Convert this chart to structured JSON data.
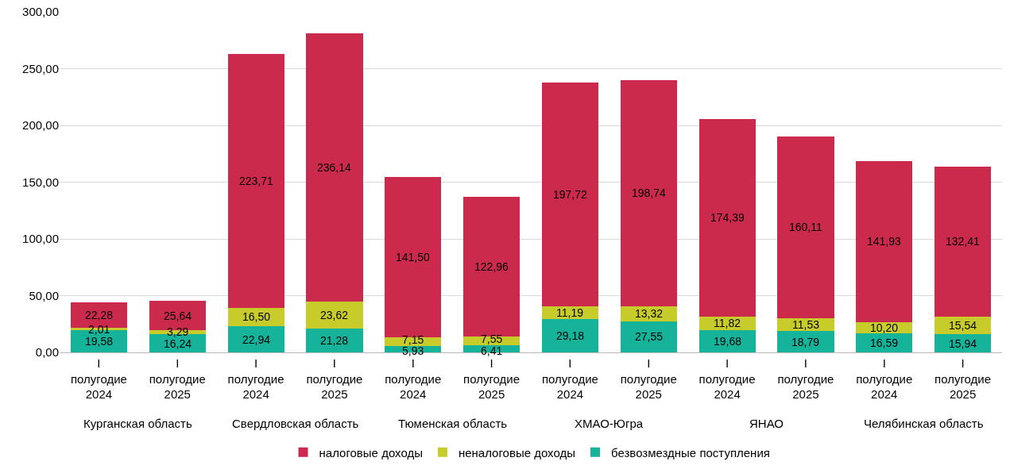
{
  "chart_data": {
    "type": "bar",
    "stacked": true,
    "grid": "y",
    "legend": "bottom",
    "categories": [
      "I полугодие 2024",
      "I полугодие 2025",
      "I полугодие 2024",
      "I полугодие 2025",
      "I полугодие 2024",
      "I полугодие 2025",
      "I полугодие 2024",
      "I полугодие 2025",
      "I полугодие 2024",
      "I полугодие 2025",
      "I полугодие 2024",
      "I полугодие 2025"
    ],
    "annotations": [
      "Курганская область",
      "Свердловская область",
      "Тюменская область",
      "ХМАО-Югра",
      "ЯНАО",
      "Челябинская область"
    ],
    "ylim": [
      0,
      300
    ],
    "yticks": [
      {
        "value": 0,
        "label": "0,00"
      },
      {
        "value": 50,
        "label": "50,00"
      },
      {
        "value": 100,
        "label": "100,00"
      },
      {
        "value": 150,
        "label": "150,00"
      },
      {
        "value": 200,
        "label": "200,00"
      },
      {
        "value": 250,
        "label": "250,00"
      },
      {
        "value": 300,
        "label": "300,00"
      }
    ],
    "series": [
      {
        "name": "безвозмездные поступления",
        "color": "#14b39a",
        "values": [
          19.58,
          16.24,
          22.94,
          21.28,
          5.93,
          6.41,
          29.18,
          27.55,
          19.68,
          18.79,
          16.59,
          15.94
        ],
        "value_labels": [
          "19,58",
          "16,24",
          "22,94",
          "21,28",
          "5,93",
          "6,41",
          "29,18",
          "27,55",
          "19,68",
          "18,79",
          "16,59",
          "15,94"
        ]
      },
      {
        "name": "неналоговые доходы",
        "color": "#c8cc2a",
        "values": [
          2.01,
          3.29,
          16.5,
          23.62,
          7.15,
          7.55,
          11.19,
          13.32,
          11.82,
          11.53,
          10.2,
          15.54
        ],
        "value_labels": [
          "2,01",
          "3,29",
          "16,50",
          "23,62",
          "7,15",
          "7,55",
          "11,19",
          "13,32",
          "11,82",
          "11,53",
          "10,20",
          "15,54"
        ]
      },
      {
        "name": "налоговые доходы",
        "color": "#cc2a4c",
        "values": [
          22.28,
          25.64,
          223.71,
          236.14,
          141.5,
          122.96,
          197.72,
          198.74,
          174.39,
          160.11,
          141.93,
          132.41
        ],
        "value_labels": [
          "22,28",
          "25,64",
          "223,71",
          "236,14",
          "141,50",
          "122,96",
          "197,72",
          "198,74",
          "174,39",
          "160,11",
          "141,93",
          "132,41"
        ]
      }
    ]
  }
}
